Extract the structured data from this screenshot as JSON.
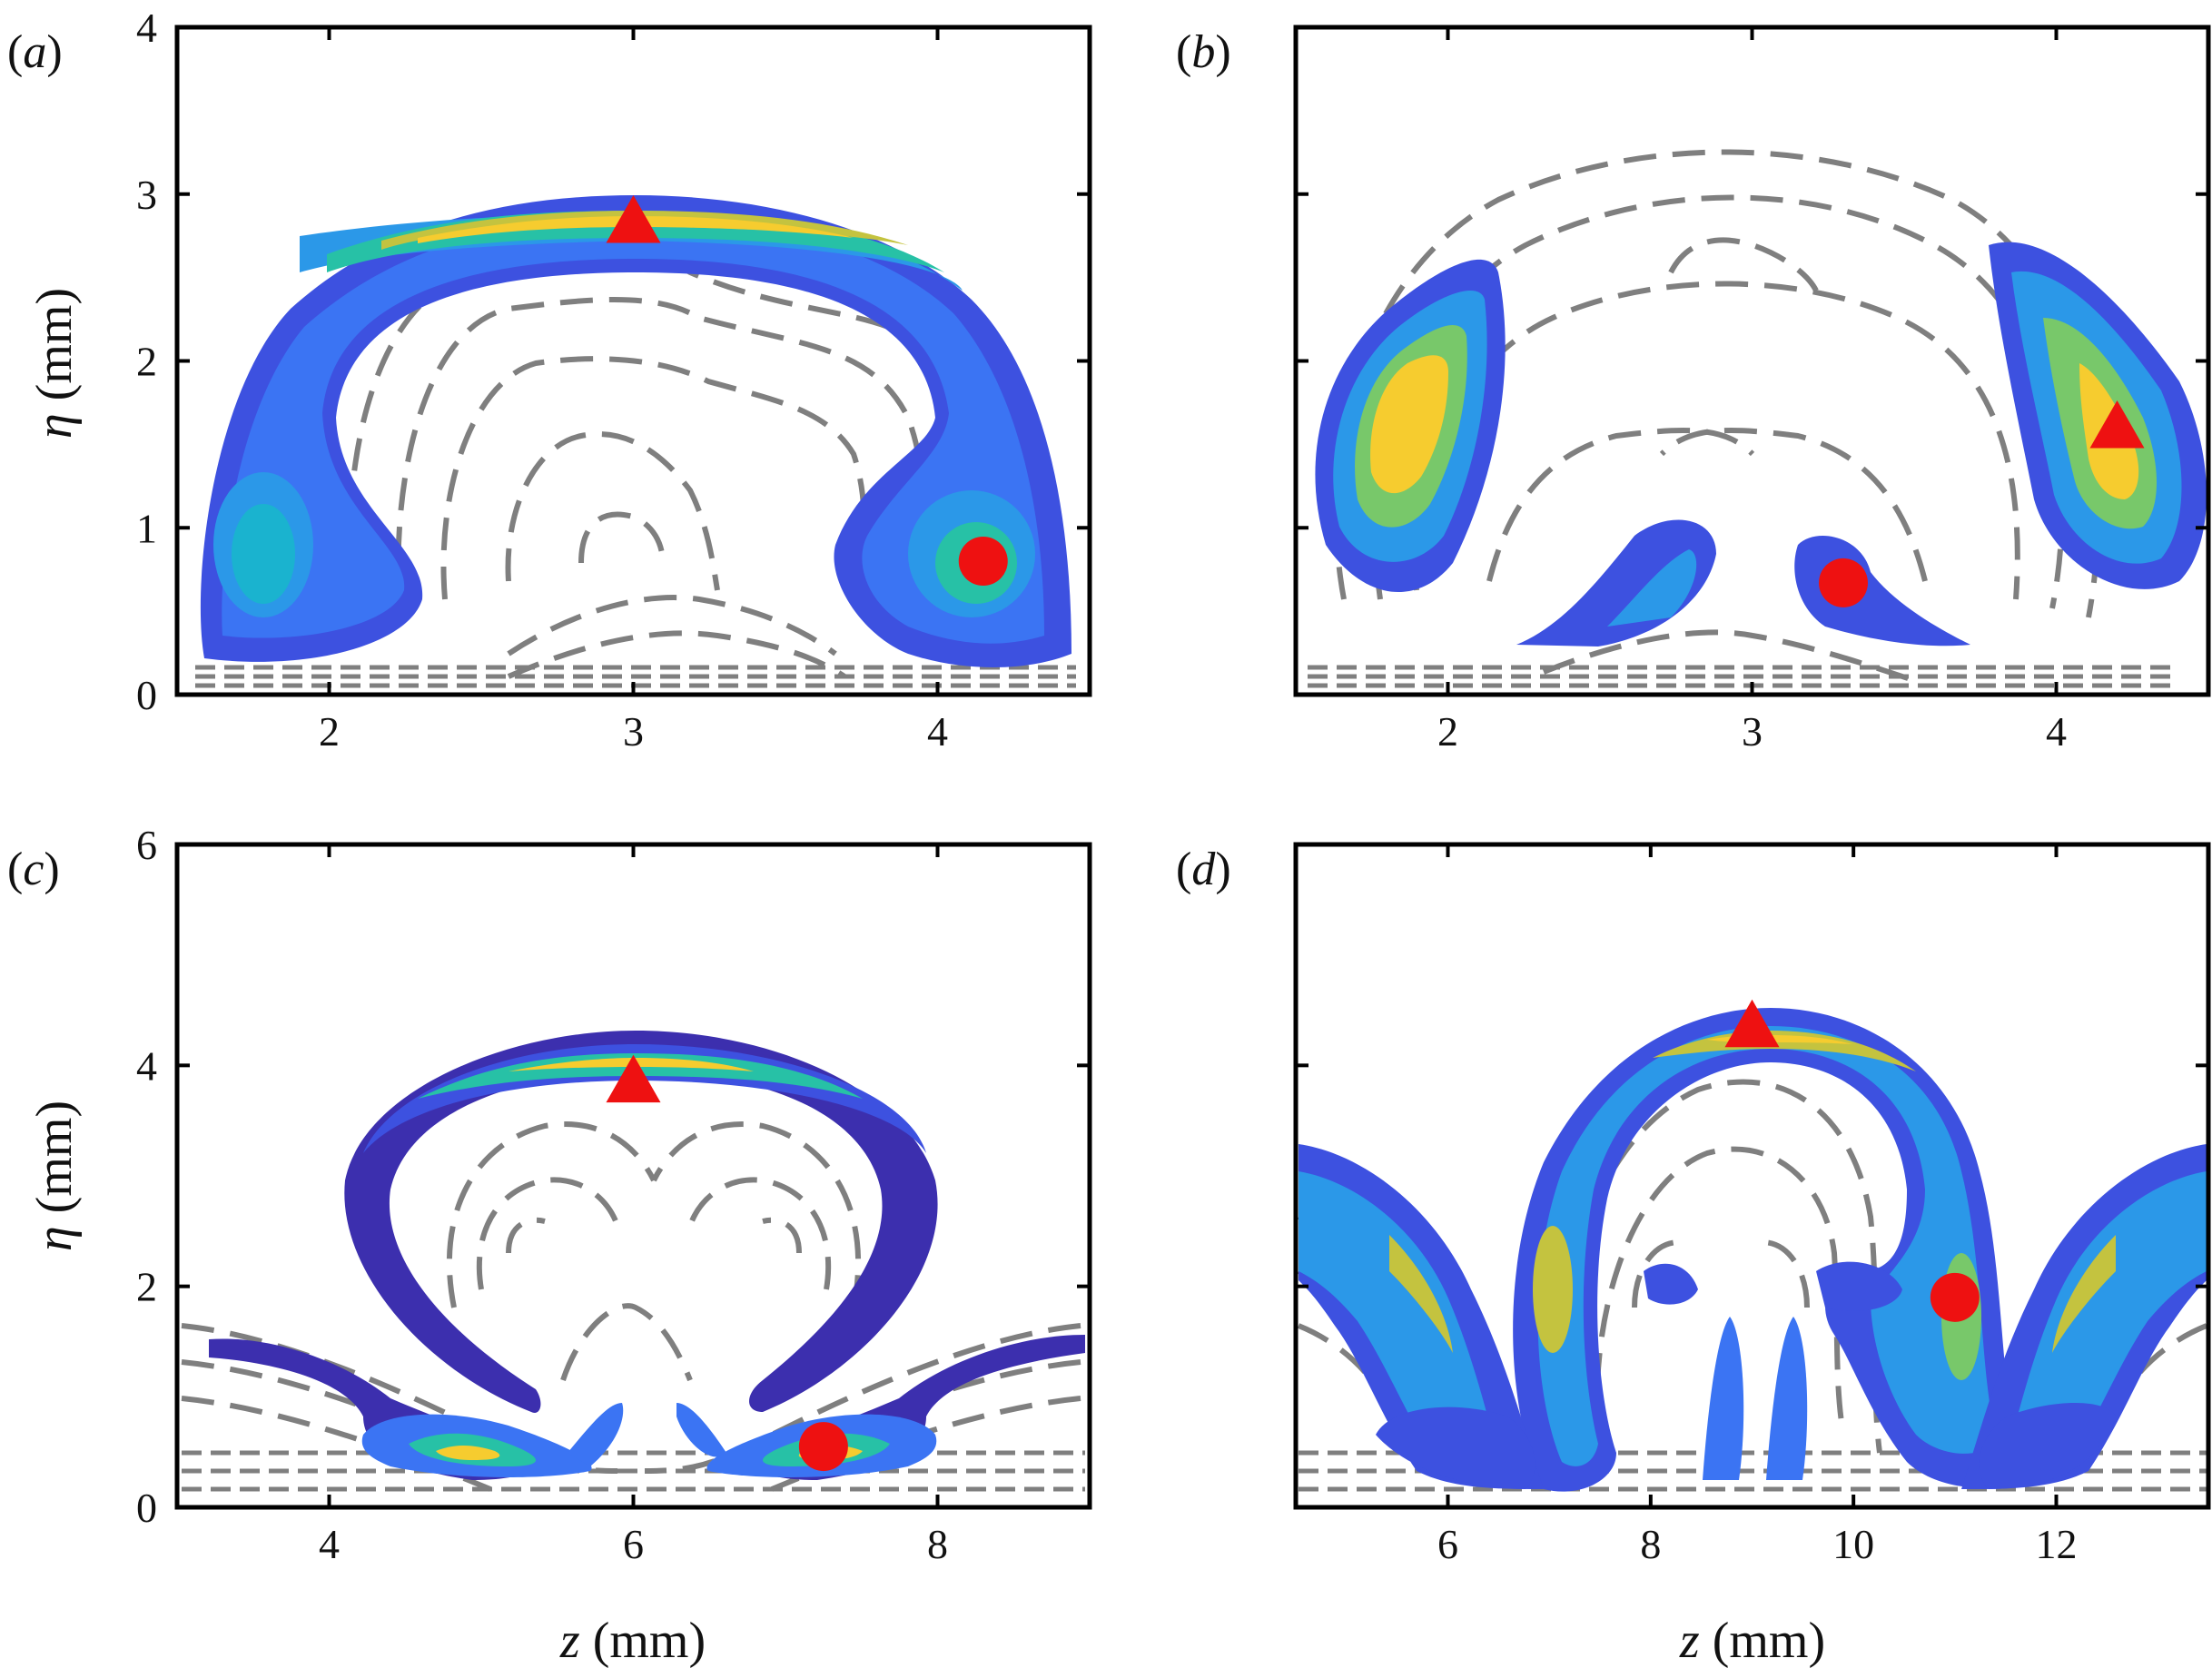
{
  "figure": {
    "panels": [
      {
        "id": "a",
        "label_letter": "a",
        "open": "(",
        "close": ")"
      },
      {
        "id": "b",
        "label_letter": "b",
        "open": "(",
        "close": ")"
      },
      {
        "id": "c",
        "label_letter": "c",
        "open": "(",
        "close": ")"
      },
      {
        "id": "d",
        "label_letter": "d",
        "open": "(",
        "close": ")"
      }
    ],
    "ylabel_symbol": "η",
    "ylabel_unit": " (mm)",
    "xlabel_symbol": "z",
    "xlabel_unit": " (mm)"
  },
  "colors": {
    "dashed_contours": "#7f7f7f",
    "marker": "#ee1111",
    "colormap": [
      "#3c2fae",
      "#3d51e0",
      "#3b74f3",
      "#2b98e8",
      "#1ab3cf",
      "#27c1a6",
      "#78c86a",
      "#c4c33f",
      "#f6cc2f",
      "#f9e22a"
    ]
  },
  "chart_data": [
    {
      "panel": "a",
      "type": "contour",
      "xlim": [
        1.5,
        4.5
      ],
      "ylim": [
        0,
        4
      ],
      "xticks": [
        2,
        3,
        4
      ],
      "yticks": [
        0,
        1,
        2,
        3,
        4
      ],
      "xlabel": "",
      "ylabel": "η (mm)",
      "markers": [
        {
          "shape": "triangle",
          "x": 3.0,
          "y": 2.83
        },
        {
          "shape": "circle",
          "x": 4.15,
          "y": 0.8
        }
      ]
    },
    {
      "panel": "b",
      "type": "contour",
      "xlim": [
        1.5,
        4.5
      ],
      "ylim": [
        0,
        4
      ],
      "xticks": [
        2,
        3,
        4
      ],
      "yticks": [
        0,
        1,
        2,
        3,
        4
      ],
      "xlabel": "",
      "ylabel": "",
      "markers": [
        {
          "shape": "triangle",
          "x": 4.2,
          "y": 1.6
        },
        {
          "shape": "circle",
          "x": 3.3,
          "y": 0.67
        }
      ]
    },
    {
      "panel": "c",
      "type": "contour",
      "xlim": [
        3,
        9
      ],
      "ylim": [
        0,
        6
      ],
      "xticks": [
        4,
        6,
        8
      ],
      "yticks": [
        0,
        2,
        4,
        6
      ],
      "xlabel": "z (mm)",
      "ylabel": "η (mm)",
      "markers": [
        {
          "shape": "triangle",
          "x": 6.0,
          "y": 3.85
        },
        {
          "shape": "circle",
          "x": 7.25,
          "y": 0.55
        }
      ]
    },
    {
      "panel": "d",
      "type": "contour",
      "xlim": [
        4.5,
        13.5
      ],
      "ylim": [
        0,
        6
      ],
      "xticks": [
        6,
        8,
        10,
        12
      ],
      "yticks": [
        0,
        2,
        4,
        6
      ],
      "xlabel": "z (mm)",
      "ylabel": "",
      "markers": [
        {
          "shape": "triangle",
          "x": 9.0,
          "y": 4.35
        },
        {
          "shape": "circle",
          "x": 11.0,
          "y": 1.9
        }
      ]
    }
  ]
}
